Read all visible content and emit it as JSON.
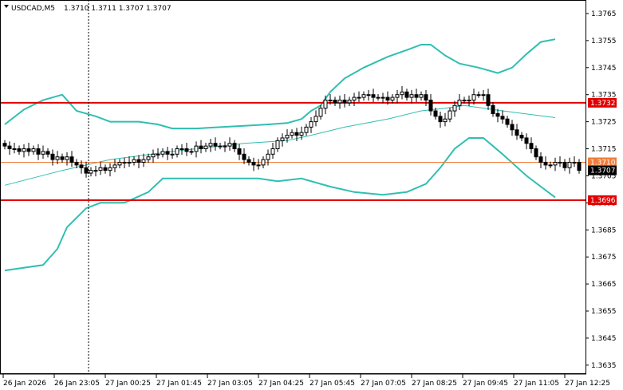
{
  "header": {
    "symbol_timeframe": "USDCAD,M5",
    "ohlc": "1.3710 1.3711 1.3707 1.3707"
  },
  "price_axis": {
    "ticks": [
      "1.3765",
      "1.3755",
      "1.3745",
      "1.3735",
      "1.3725",
      "1.3715",
      "1.3705",
      "1.3695",
      "1.3685",
      "1.3675",
      "1.3665",
      "1.3655",
      "1.3645",
      "1.3635"
    ]
  },
  "time_axis": {
    "labels": [
      "26 Jan 2026",
      "26 Jan 23:05",
      "27 Jan 00:25",
      "27 Jan 01:45",
      "27 Jan 03:05",
      "27 Jan 04:25",
      "27 Jan 05:45",
      "27 Jan 07:05",
      "27 Jan 08:25",
      "27 Jan 09:45",
      "27 Jan 11:05",
      "27 Jan 12:25"
    ]
  },
  "price_tags": {
    "resistance": "1.3732",
    "bid": "1.3710",
    "last": "1.3707",
    "support": "1.3696"
  },
  "colors": {
    "level_line": "#e00000",
    "bid_line": "#f07e3c",
    "bollinger": "#2fbfb0",
    "candle": "#000000",
    "grid_frame": "#000000"
  },
  "chart_data": {
    "type": "candlestick",
    "symbol": "USDCAD",
    "timeframe": "M5",
    "y_range": [
      1.3632,
      1.377
    ],
    "horizontal_levels": [
      1.3732,
      1.3696
    ],
    "bid_level": 1.371,
    "closes": [
      1.3716,
      1.3715,
      1.3715,
      1.3714,
      1.3715,
      1.3714,
      1.3715,
      1.3713,
      1.3714,
      1.3713,
      1.3711,
      1.3712,
      1.3711,
      1.3712,
      1.371,
      1.3709,
      1.3708,
      1.3706,
      1.3707,
      1.3707,
      1.3708,
      1.3707,
      1.3708,
      1.3709,
      1.371,
      1.371,
      1.371,
      1.3711,
      1.371,
      1.3711,
      1.3712,
      1.3713,
      1.3713,
      1.3714,
      1.3713,
      1.3713,
      1.3715,
      1.3715,
      1.3714,
      1.3714,
      1.3716,
      1.3715,
      1.3716,
      1.3717,
      1.3716,
      1.3716,
      1.3716,
      1.3717,
      1.3715,
      1.3713,
      1.3711,
      1.371,
      1.3709,
      1.3709,
      1.3711,
      1.3713,
      1.3715,
      1.3718,
      1.3719,
      1.372,
      1.3721,
      1.372,
      1.3721,
      1.3723,
      1.3725,
      1.3727,
      1.373,
      1.3733,
      1.3733,
      1.3732,
      1.3733,
      1.3732,
      1.3733,
      1.3734,
      1.3734,
      1.3735,
      1.3735,
      1.3734,
      1.3734,
      1.3734,
      1.3733,
      1.3734,
      1.3735,
      1.3736,
      1.3734,
      1.3735,
      1.3734,
      1.3735,
      1.3733,
      1.3729,
      1.3727,
      1.3725,
      1.3726,
      1.3729,
      1.3731,
      1.3733,
      1.3733,
      1.3733,
      1.3735,
      1.3735,
      1.3735,
      1.3731,
      1.3728,
      1.3727,
      1.3726,
      1.3724,
      1.3722,
      1.372,
      1.3719,
      1.3717,
      1.3715,
      1.3712,
      1.371,
      1.3709,
      1.3709,
      1.371,
      1.371,
      1.3708,
      1.371,
      1.371,
      1.3707
    ],
    "bollinger_upper": [
      [
        1.3724,
        0
      ],
      [
        1.37295,
        4
      ],
      [
        1.3733,
        8
      ],
      [
        1.3735,
        12
      ],
      [
        1.3729,
        15
      ],
      [
        1.3727,
        19
      ],
      [
        1.3725,
        22
      ],
      [
        1.3725,
        28
      ],
      [
        1.3724,
        32
      ],
      [
        1.37225,
        35
      ],
      [
        1.37225,
        40
      ],
      [
        1.3723,
        45
      ],
      [
        1.37235,
        50
      ],
      [
        1.3724,
        55
      ],
      [
        1.37245,
        59
      ],
      [
        1.3726,
        62
      ],
      [
        1.3729,
        64
      ],
      [
        1.3731,
        66
      ],
      [
        1.3736,
        68
      ],
      [
        1.3741,
        71
      ],
      [
        1.3745,
        75
      ],
      [
        1.3749,
        80
      ],
      [
        1.37515,
        84
      ],
      [
        1.37535,
        87
      ],
      [
        1.37535,
        89
      ],
      [
        1.37495,
        92
      ],
      [
        1.37465,
        95
      ],
      [
        1.3745,
        99
      ],
      [
        1.3743,
        103
      ],
      [
        1.3745,
        106
      ],
      [
        1.375,
        109
      ],
      [
        1.37545,
        112
      ],
      [
        1.37555,
        115
      ]
    ],
    "bollinger_middle": [
      [
        1.37015,
        0
      ],
      [
        1.3707,
        12
      ],
      [
        1.3711,
        22
      ],
      [
        1.3714,
        35
      ],
      [
        1.3717,
        50
      ],
      [
        1.3718,
        59
      ],
      [
        1.372,
        64
      ],
      [
        1.3723,
        71
      ],
      [
        1.3726,
        80
      ],
      [
        1.3729,
        87
      ],
      [
        1.373,
        92
      ],
      [
        1.3731,
        96
      ],
      [
        1.3729,
        104
      ],
      [
        1.37265,
        115
      ]
    ],
    "bollinger_lower": [
      [
        1.367,
        0
      ],
      [
        1.3672,
        8
      ],
      [
        1.3678,
        11
      ],
      [
        1.3686,
        13
      ],
      [
        1.3693,
        17
      ],
      [
        1.3695,
        20
      ],
      [
        1.3695,
        25
      ],
      [
        1.3699,
        30
      ],
      [
        1.3704,
        33
      ],
      [
        1.3704,
        45
      ],
      [
        1.3704,
        53
      ],
      [
        1.3703,
        57
      ],
      [
        1.3704,
        62
      ],
      [
        1.3701,
        68
      ],
      [
        1.3699,
        73
      ],
      [
        1.3698,
        79
      ],
      [
        1.3699,
        84
      ],
      [
        1.3702,
        88
      ],
      [
        1.3708,
        91
      ],
      [
        1.3715,
        94
      ],
      [
        1.3719,
        97
      ],
      [
        1.3719,
        100
      ],
      [
        1.3713,
        104
      ],
      [
        1.3705,
        109
      ],
      [
        1.3697,
        115
      ]
    ]
  }
}
